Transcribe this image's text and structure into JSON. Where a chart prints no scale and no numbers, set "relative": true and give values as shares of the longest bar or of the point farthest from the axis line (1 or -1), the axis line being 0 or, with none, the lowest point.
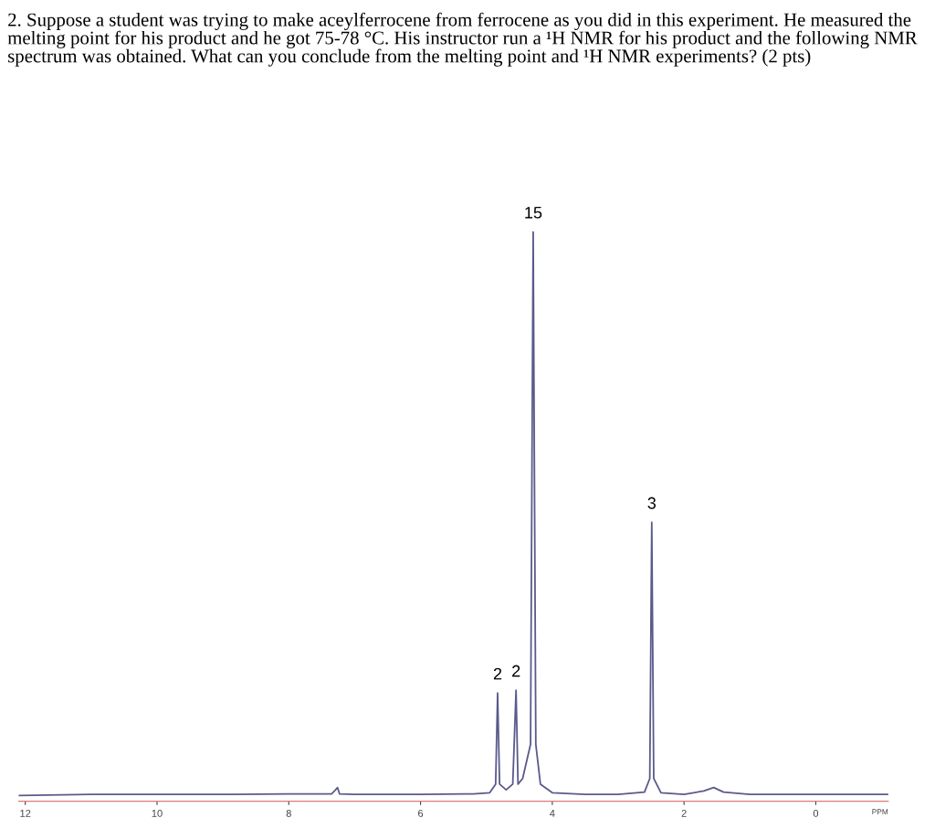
{
  "chart_data": {
    "type": "line",
    "relative": true,
    "title": "2. Suppose a student was trying to make aceylferrocene from ferrocene as you did in this experiment. He measured the melting point for his product and he got 75-78 °C. His instructor run a ¹H NMR for his product and the following NMR spectrum was obtained. What can you conclude from the melting point and ¹H NMR experiments? (2 pts)",
    "xlabel": "PPM",
    "x": [
      12.1,
      11,
      10,
      9,
      8,
      7.35,
      7.29,
      7.26,
      7.23,
      7,
      6,
      5.2,
      4.95,
      4.86,
      4.83,
      4.8,
      4.7,
      4.6,
      4.55,
      4.52,
      4.45,
      4.33,
      4.29,
      4.25,
      4.18,
      4.0,
      3.5,
      3.0,
      2.6,
      2.52,
      2.49,
      2.46,
      2.35,
      2.0,
      1.7,
      1.55,
      1.4,
      1.0,
      0,
      -1.1
    ],
    "series": [
      {
        "color": "#5a5a8c",
        "values": [
          0.01,
          0.012,
          0.012,
          0.012,
          0.013,
          0.013,
          0.02,
          0.024,
          0.013,
          0.012,
          0.012,
          0.013,
          0.015,
          0.03,
          0.19,
          0.03,
          0.02,
          0.03,
          0.195,
          0.03,
          0.04,
          0.1,
          1.0,
          0.1,
          0.03,
          0.015,
          0.012,
          0.012,
          0.016,
          0.04,
          0.49,
          0.04,
          0.015,
          0.012,
          0.018,
          0.024,
          0.016,
          0.012,
          0.012,
          0.012
        ]
      }
    ],
    "xlim": [
      12.1,
      -1.1
    ],
    "xticks": [
      12,
      10,
      8,
      6,
      4,
      2,
      0
    ],
    "annotations": [
      {
        "text": "2",
        "x": 4.83,
        "y": 0.19
      },
      {
        "text": "2",
        "x": 4.55,
        "y": 0.195
      },
      {
        "text": "15",
        "x": 4.29,
        "y": 1.0
      },
      {
        "text": "3",
        "x": 2.49,
        "y": 0.49
      }
    ],
    "grid": false,
    "legend": false,
    "marker": "none",
    "line_style": "solid"
  }
}
